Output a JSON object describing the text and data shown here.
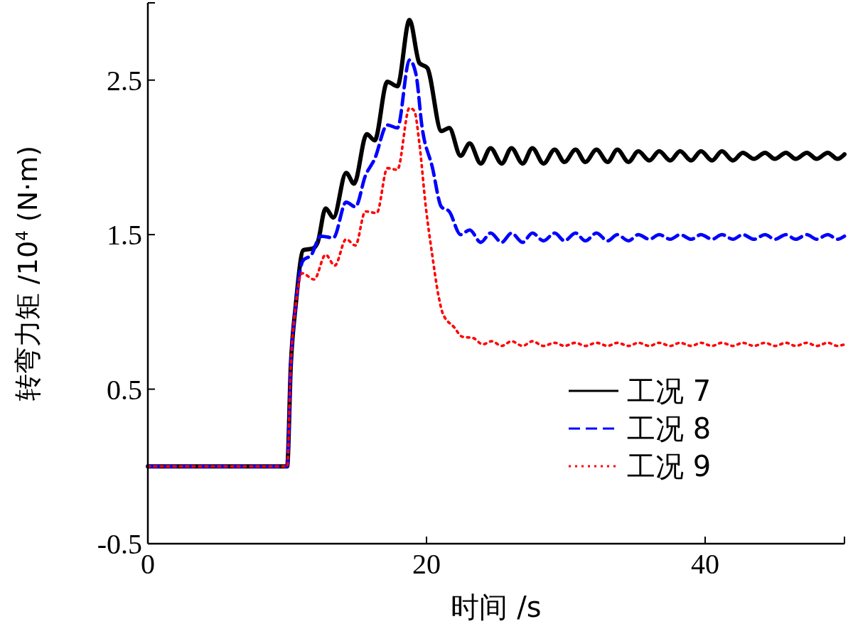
{
  "chart_data": {
    "type": "line",
    "xlabel": "时间 /s",
    "ylabel": "转弯力矩 /10$^{4}$ (N·m)",
    "xlim": [
      0,
      50
    ],
    "xticks": [
      0,
      20,
      40,
      {
        "value": 50,
        "label": null
      }
    ],
    "ylim": [
      -0.5,
      3
    ],
    "yticks": [
      -0.5,
      0.5,
      1.5,
      2.5,
      {
        "value": 3,
        "label": null
      }
    ],
    "grid": false,
    "legend": "right",
    "marker": "none",
    "series": [
      {
        "name": "工况 7",
        "color": "#000000",
        "line_style": "solid",
        "x": [
          0,
          10,
          10.26,
          10.61,
          11.17,
          11.84,
          12.19,
          12.76,
          13.32,
          14.23,
          14.8,
          15.71,
          16.28,
          17.19,
          17.91,
          18.78,
          19.49,
          20.05,
          21.07,
          21.63,
          22.45,
          23.1,
          23.9,
          24.6,
          25.4,
          26.1,
          26.9,
          27.6,
          28.4,
          29.2,
          29.9,
          30.7,
          31.4,
          32.2,
          33.0,
          33.7,
          34.5,
          35.2,
          36.0,
          36.7,
          37.5,
          38.2,
          39.0,
          39.7,
          40.5,
          41.2,
          42.0,
          42.7,
          43.5,
          44.3,
          45.0,
          45.8,
          46.5,
          47.3,
          48.0,
          48.8,
          49.5,
          50
        ],
        "values": [
          0,
          0,
          0.65,
          1.04,
          1.4,
          1.41,
          1.45,
          1.67,
          1.61,
          1.9,
          1.83,
          2.15,
          2.11,
          2.49,
          2.46,
          2.89,
          2.61,
          2.58,
          2.17,
          2.19,
          2.01,
          2.09,
          1.96,
          2.06,
          1.96,
          2.06,
          1.96,
          2.06,
          1.96,
          2.05,
          1.97,
          2.05,
          1.97,
          2.05,
          1.97,
          2.05,
          1.97,
          2.04,
          1.98,
          2.04,
          1.98,
          2.04,
          1.98,
          2.04,
          1.98,
          2.04,
          1.98,
          2.03,
          1.99,
          2.03,
          1.99,
          2.03,
          1.99,
          2.03,
          1.99,
          2.03,
          1.99,
          2.02
        ]
      },
      {
        "name": "工况 8",
        "color": "#0000ff",
        "line_style": "dashed",
        "x": [
          0,
          10,
          10.26,
          10.61,
          11.12,
          11.74,
          12.4,
          13.32,
          14.23,
          14.9,
          15.61,
          16.28,
          17.19,
          17.91,
          18.78,
          19.24,
          19.69,
          20.41,
          21.07,
          21.63,
          22.45,
          23.1,
          23.9,
          24.6,
          25.4,
          26.1,
          26.9,
          27.6,
          28.4,
          29.2,
          29.9,
          30.7,
          31.4,
          32.2,
          33.0,
          33.7,
          34.5,
          35.2,
          36.0,
          36.7,
          37.5,
          38.2,
          39.0,
          39.7,
          40.5,
          41.2,
          42.0,
          42.7,
          43.5,
          44.3,
          45.0,
          45.8,
          46.5,
          47.3,
          48.0,
          48.8,
          49.5,
          50
        ],
        "values": [
          0,
          0,
          0.65,
          1.04,
          1.33,
          1.37,
          1.49,
          1.48,
          1.71,
          1.68,
          1.88,
          1.99,
          2.21,
          2.19,
          2.63,
          2.54,
          2.19,
          1.94,
          1.68,
          1.65,
          1.5,
          1.53,
          1.45,
          1.51,
          1.45,
          1.51,
          1.45,
          1.51,
          1.46,
          1.51,
          1.46,
          1.51,
          1.46,
          1.51,
          1.46,
          1.5,
          1.46,
          1.5,
          1.47,
          1.5,
          1.47,
          1.5,
          1.47,
          1.5,
          1.47,
          1.5,
          1.47,
          1.5,
          1.47,
          1.5,
          1.47,
          1.5,
          1.47,
          1.5,
          1.47,
          1.5,
          1.47,
          1.49
        ]
      },
      {
        "name": "工况 9",
        "color": "#ff0000",
        "line_style": "dotted",
        "x": [
          0,
          10,
          10.26,
          10.61,
          11.07,
          11.94,
          12.76,
          13.42,
          14.23,
          14.9,
          15.61,
          16.43,
          17.19,
          17.91,
          18.78,
          19.13,
          19.49,
          19.95,
          20.41,
          20.87,
          21.17,
          21.99,
          22.55,
          23.37,
          24.03,
          24.69,
          25.4,
          26.1,
          26.9,
          27.6,
          28.4,
          29.2,
          29.9,
          30.7,
          31.4,
          32.2,
          33.0,
          33.7,
          34.5,
          35.2,
          36.0,
          36.7,
          37.5,
          38.2,
          39.0,
          39.7,
          40.5,
          41.2,
          42.0,
          42.7,
          43.5,
          44.3,
          45.0,
          45.8,
          46.5,
          47.3,
          48.0,
          48.8,
          49.5,
          50
        ],
        "values": [
          0,
          0,
          0.65,
          1.04,
          1.25,
          1.21,
          1.37,
          1.3,
          1.47,
          1.43,
          1.65,
          1.64,
          1.93,
          1.92,
          2.32,
          2.3,
          2.09,
          1.68,
          1.37,
          1.1,
          0.99,
          0.9,
          0.84,
          0.83,
          0.79,
          0.81,
          0.78,
          0.81,
          0.78,
          0.81,
          0.78,
          0.8,
          0.78,
          0.8,
          0.78,
          0.8,
          0.78,
          0.8,
          0.78,
          0.8,
          0.78,
          0.8,
          0.78,
          0.8,
          0.78,
          0.8,
          0.78,
          0.8,
          0.78,
          0.8,
          0.78,
          0.8,
          0.78,
          0.8,
          0.78,
          0.8,
          0.78,
          0.8,
          0.78,
          0.79
        ]
      }
    ]
  }
}
